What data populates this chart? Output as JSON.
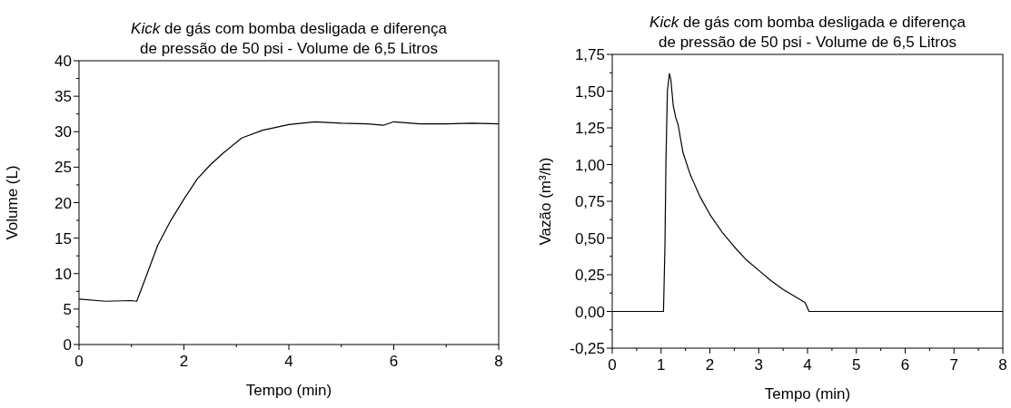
{
  "chart_data": [
    {
      "type": "line",
      "title": "Kick de gás com bomba desligada e diferença de pressão de 50 psi - Volume de 6,5 Litros",
      "xlabel": "Tempo (min)",
      "ylabel": "Volume (L)",
      "xlim": [
        0,
        8
      ],
      "xticks": [
        0,
        2,
        4,
        6,
        8
      ],
      "ylim": [
        0,
        40
      ],
      "yticks": [
        0,
        5,
        10,
        15,
        20,
        25,
        30,
        35,
        40
      ],
      "grid": false,
      "series": [
        {
          "color": "#000000",
          "x": [
            0,
            0.5,
            1.0,
            1.1,
            1.3,
            1.5,
            1.75,
            2,
            2.25,
            2.5,
            2.75,
            3,
            3.1,
            3.5,
            4,
            4.5,
            5,
            5.5,
            5.8,
            6,
            6.5,
            7,
            7.5,
            8
          ],
          "values": [
            6.4,
            6.1,
            6.2,
            6.1,
            10,
            14,
            17.5,
            20.5,
            23.3,
            25.3,
            27,
            28.5,
            29.1,
            30.2,
            31,
            31.4,
            31.2,
            31.1,
            30.9,
            31.4,
            31.1,
            31.1,
            31.2,
            31.1
          ]
        }
      ]
    },
    {
      "type": "line",
      "title": "Kick de gás com bomba desligada e diferença de pressão de 50 psi - Volume de 6,5 Litros",
      "xlabel": "Tempo (min)",
      "ylabel": "Vazão (m³/h)",
      "xlim": [
        0,
        8
      ],
      "xticks": [
        0,
        1,
        2,
        3,
        4,
        5,
        6,
        7,
        8
      ],
      "ylim": [
        -0.25,
        1.75
      ],
      "yticks": [
        {
          "value": -0.25,
          "label": "-0,25"
        },
        {
          "value": 0,
          "label": "0,00"
        },
        {
          "value": 0.25,
          "label": "0,25"
        },
        {
          "value": 0.5,
          "label": "0,50"
        },
        {
          "value": 0.75,
          "label": "0,75"
        },
        {
          "value": 1,
          "label": "1,00"
        },
        {
          "value": 1.25,
          "label": "1,25"
        },
        {
          "value": 1.5,
          "label": "1,50"
        },
        {
          "value": 1.75,
          "label": "1,75"
        }
      ],
      "grid": false,
      "series": [
        {
          "color": "#000000",
          "x": [
            0,
            1.05,
            1.08,
            1.1,
            1.13,
            1.17,
            1.2,
            1.25,
            1.3,
            1.35,
            1.45,
            1.6,
            1.8,
            2,
            2.25,
            2.5,
            2.75,
            3,
            3.25,
            3.5,
            3.75,
            3.95,
            4.03,
            8
          ],
          "values": [
            0,
            0,
            0.45,
            1.02,
            1.5,
            1.62,
            1.58,
            1.4,
            1.32,
            1.27,
            1.08,
            0.93,
            0.78,
            0.66,
            0.54,
            0.44,
            0.35,
            0.28,
            0.21,
            0.15,
            0.1,
            0.06,
            0,
            0
          ]
        }
      ]
    }
  ]
}
